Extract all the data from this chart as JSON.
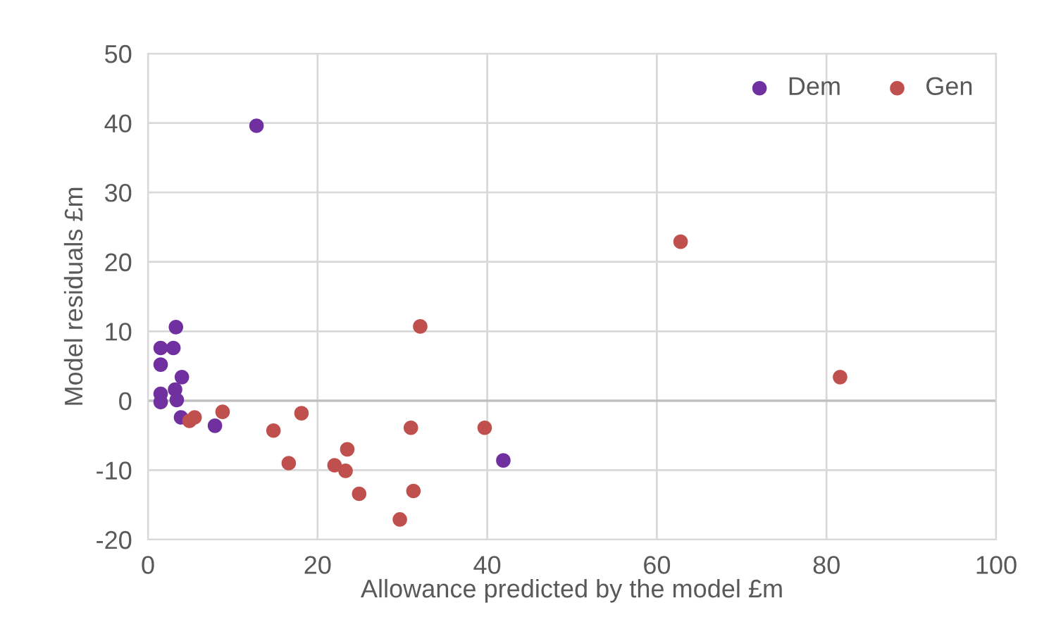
{
  "chart_data": {
    "type": "scatter",
    "xlabel": "Allowance predicted by the model £m",
    "ylabel": "Model residuals £m",
    "xlim": [
      0,
      100
    ],
    "xticks": [
      0,
      20,
      40,
      60,
      80,
      100
    ],
    "ylim": [
      -20,
      50
    ],
    "yticks": [
      -20,
      -10,
      0,
      10,
      20,
      30,
      40,
      50
    ],
    "grid": true,
    "legend": "top right",
    "marker": "circle",
    "series": [
      {
        "name": "Dem",
        "color": "#7030a0",
        "x": [
          3.3,
          1.5,
          3.0,
          1.5,
          4.0,
          1.5,
          3.2,
          1.5,
          3.4,
          3.9,
          7.9,
          12.8,
          41.9
        ],
        "values": [
          10.6,
          7.6,
          7.6,
          5.2,
          3.4,
          1.0,
          1.6,
          -0.2,
          0.1,
          -2.4,
          -3.6,
          39.6,
          -8.6
        ]
      },
      {
        "name": "Gen",
        "color": "#c0504d",
        "x": [
          4.9,
          5.5,
          8.8,
          14.8,
          18.1,
          16.6,
          23.5,
          22.0,
          23.3,
          24.9,
          29.7,
          31.3,
          31.0,
          39.7,
          32.1,
          62.8,
          81.6
        ],
        "values": [
          -2.9,
          -2.4,
          -1.6,
          -4.3,
          -1.8,
          -9.0,
          -7.0,
          -9.3,
          -10.1,
          -13.4,
          -17.1,
          -13.0,
          -3.9,
          -3.9,
          10.7,
          22.9,
          3.4
        ]
      }
    ]
  }
}
